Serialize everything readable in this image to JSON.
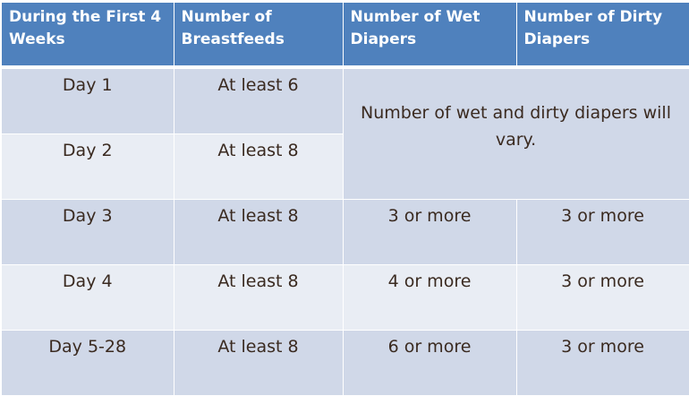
{
  "headers": [
    "During the First 4 Weeks",
    "Number of Breastfeeds",
    "Number of Wet Diapers",
    "Number of Dirty Diapers"
  ],
  "merged_note": "Number of wet and dirty diapers will vary.",
  "rows": [
    {
      "day": "Day 1",
      "feeds": "At least 6"
    },
    {
      "day": "Day 2",
      "feeds": "At least 8"
    },
    {
      "day": "Day 3",
      "feeds": "At least 8",
      "wet": "3 or more",
      "dirty": "3 or more"
    },
    {
      "day": "Day 4",
      "feeds": "At least 8",
      "wet": "4 or more",
      "dirty": "3 or more"
    },
    {
      "day": "Day 5-28",
      "feeds": "At least 8",
      "wet": "6 or more",
      "dirty": "3 or more"
    }
  ],
  "colors": {
    "header": "#4f81bd",
    "row_dark": "#d0d8e8",
    "row_light": "#e9edf4",
    "text": "#3a2a20"
  }
}
